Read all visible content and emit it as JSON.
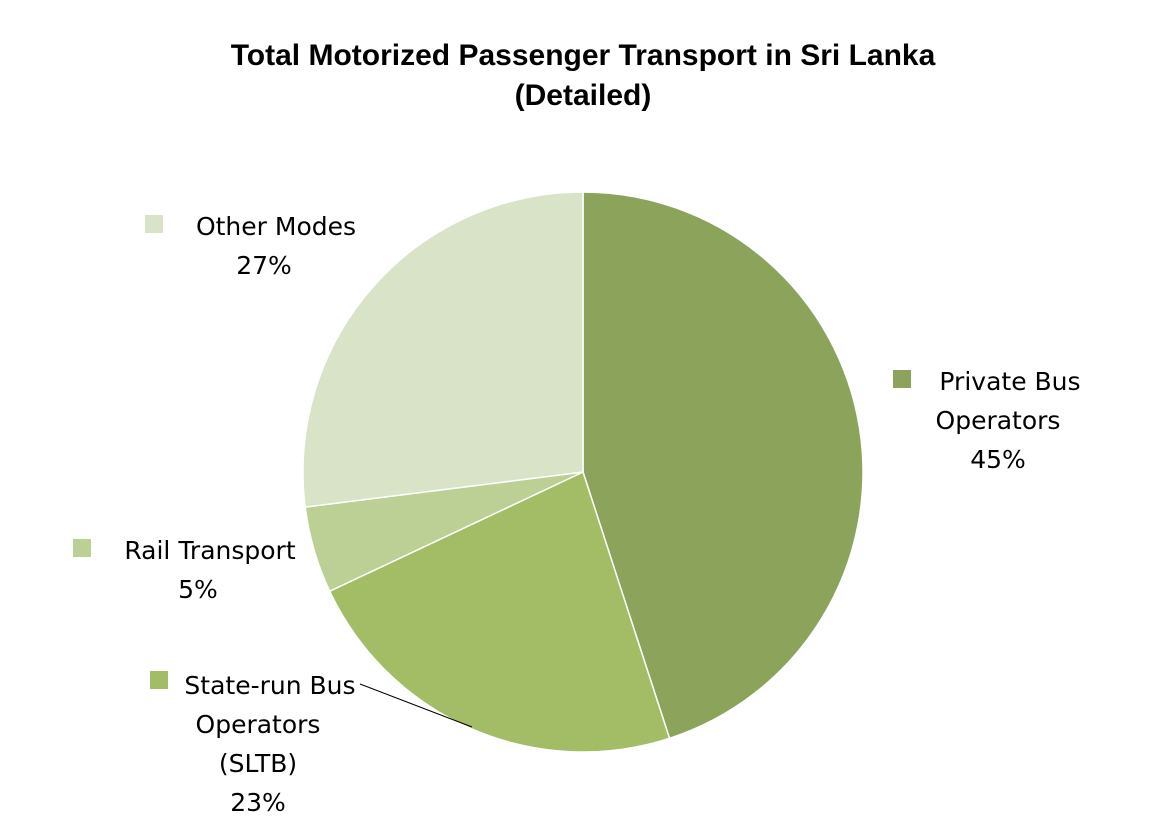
{
  "chart_data": {
    "type": "pie",
    "title": "Total Motorized Passenger Transport in Sri Lanka",
    "subtitle": "(Detailed)",
    "start_angle_deg": 0,
    "direction": "clockwise",
    "slices": [
      {
        "name": "Private Bus Operators",
        "label_lines": [
          "Private Bus",
          "Operators"
        ],
        "value": 45,
        "value_label": "45%",
        "color": "#8ba35a"
      },
      {
        "name": "State-run Bus Operators (SLTB)",
        "label_lines": [
          "State-run Bus",
          "Operators",
          "(SLTB)"
        ],
        "value": 23,
        "value_label": "23%",
        "color": "#a2bd66"
      },
      {
        "name": "Rail Transport",
        "label_lines": [
          "Rail Transport"
        ],
        "value": 5,
        "value_label": "5%",
        "color": "#bccf94"
      },
      {
        "name": "Other Modes",
        "label_lines": [
          "Other Modes"
        ],
        "value": 27,
        "value_label": "27%",
        "color": "#d8e3c7"
      }
    ],
    "legend": "none",
    "data_labels": "outside"
  }
}
